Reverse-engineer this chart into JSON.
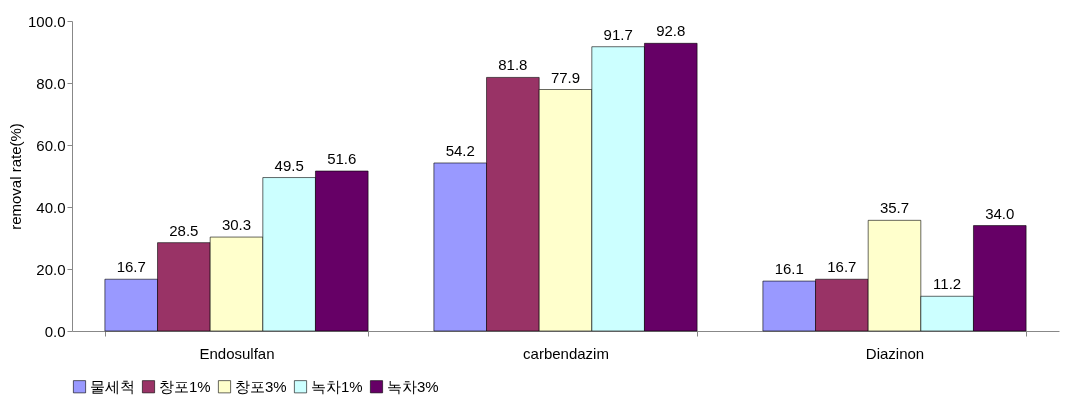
{
  "chart_data": {
    "type": "bar",
    "ylabel": "removal rate(%)",
    "categories": [
      "Endosulfan",
      "carbendazim",
      "Diazinon"
    ],
    "ylim": [
      0,
      100
    ],
    "yticks": [
      {
        "value": 0,
        "label": "0.0"
      },
      {
        "value": 20,
        "label": "20.0"
      },
      {
        "value": 40,
        "label": "40.0"
      },
      {
        "value": 60,
        "label": "60.0"
      },
      {
        "value": 80,
        "label": "80.0"
      },
      {
        "value": 100,
        "label": "100.0"
      }
    ],
    "grid": false,
    "legend": "bottom",
    "series": [
      {
        "name": "물세척",
        "color": "#9999ff",
        "values": [
          16.7,
          54.2,
          16.1
        ],
        "value_labels": [
          "16.7",
          "54.2",
          "16.1"
        ]
      },
      {
        "name": "창포1%",
        "color": "#993366",
        "values": [
          28.5,
          81.8,
          16.7
        ],
        "value_labels": [
          "28.5",
          "81.8",
          "16.7"
        ]
      },
      {
        "name": "창포3%",
        "color": "#ffffcc",
        "values": [
          30.3,
          77.9,
          35.7
        ],
        "value_labels": [
          "30.3",
          "77.9",
          "35.7"
        ]
      },
      {
        "name": "녹차1%",
        "color": "#ccffff",
        "values": [
          49.5,
          91.7,
          11.2
        ],
        "value_labels": [
          "49.5",
          "91.7",
          "11.2"
        ]
      },
      {
        "name": "녹차3%",
        "color": "#660066",
        "values": [
          51.6,
          92.8,
          34.0
        ],
        "value_labels": [
          "51.6",
          "92.8",
          "34.0"
        ]
      }
    ]
  }
}
